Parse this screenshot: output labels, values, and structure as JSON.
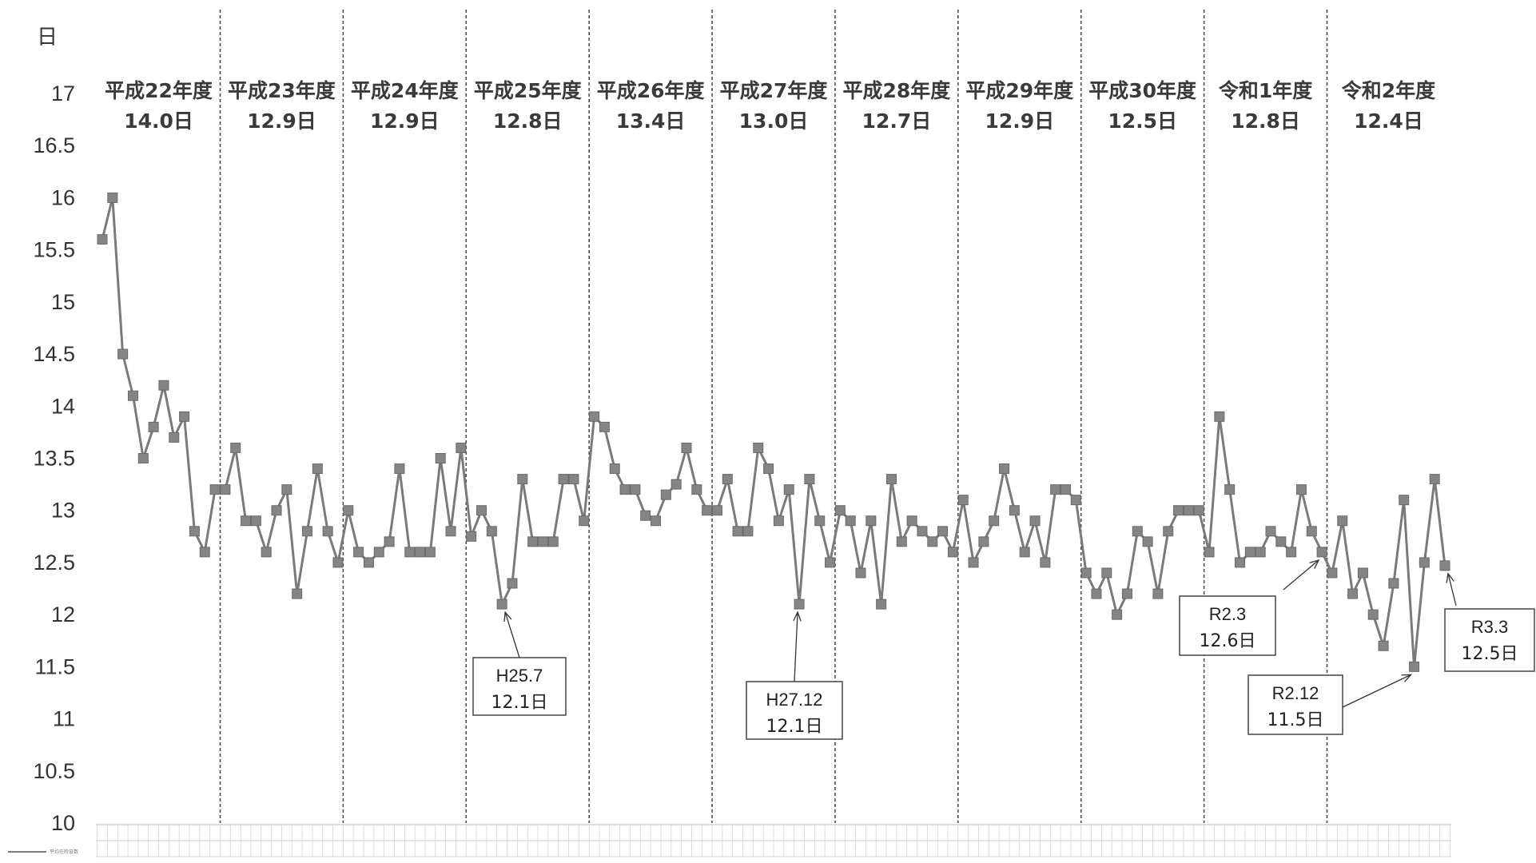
{
  "chart_data": {
    "type": "line",
    "unit_label": "日",
    "ylim": [
      10,
      17
    ],
    "y_ticks": [
      "17",
      "16.5",
      "16",
      "15.5",
      "15",
      "14.5",
      "14",
      "13.5",
      "13",
      "12.5",
      "12",
      "11.5",
      "11",
      "10.5",
      "10"
    ],
    "grid": false,
    "legend": "bottom-left",
    "series": [
      {
        "name": "平均在院日数",
        "color": "#7a7a7a",
        "values": [
          15.6,
          16.0,
          14.5,
          14.1,
          13.5,
          13.8,
          14.2,
          13.7,
          13.9,
          12.8,
          12.6,
          13.2,
          13.2,
          13.6,
          12.9,
          12.9,
          12.6,
          13.0,
          13.2,
          12.2,
          12.8,
          13.4,
          12.8,
          12.5,
          13.0,
          12.6,
          12.5,
          12.6,
          12.7,
          13.4,
          12.6,
          12.6,
          12.6,
          13.5,
          12.8,
          13.6,
          12.75,
          13.0,
          12.8,
          12.1,
          12.3,
          13.3,
          12.7,
          12.7,
          12.7,
          13.3,
          13.3,
          12.9,
          13.9,
          13.8,
          13.4,
          13.2,
          13.2,
          12.95,
          12.9,
          13.15,
          13.25,
          13.6,
          13.2,
          13.0,
          13.0,
          13.3,
          12.8,
          12.8,
          13.6,
          13.4,
          12.9,
          13.2,
          12.1,
          13.3,
          12.9,
          12.5,
          13.0,
          12.9,
          12.4,
          12.9,
          12.1,
          13.3,
          12.7,
          12.9,
          12.8,
          12.7,
          12.8,
          12.6,
          13.1,
          12.5,
          12.7,
          12.9,
          13.4,
          13.0,
          12.6,
          12.9,
          12.5,
          13.2,
          13.2,
          13.1,
          12.4,
          12.2,
          12.4,
          12.0,
          12.2,
          12.8,
          12.7,
          12.2,
          12.8,
          13.0,
          13.0,
          13.0,
          12.6,
          13.9,
          13.2,
          12.5,
          12.6,
          12.6,
          12.8,
          12.7,
          12.6,
          13.2,
          12.8,
          12.6,
          12.4,
          12.9,
          12.2,
          12.4,
          12.0,
          11.7,
          12.3,
          13.1,
          11.5,
          12.5,
          13.3,
          12.47
        ]
      }
    ],
    "fiscal_years": [
      {
        "name": "平成22年度",
        "avg": "14.0日"
      },
      {
        "name": "平成23年度",
        "avg": "12.9日"
      },
      {
        "name": "平成24年度",
        "avg": "12.9日"
      },
      {
        "name": "平成25年度",
        "avg": "12.8日"
      },
      {
        "name": "平成26年度",
        "avg": "13.4日"
      },
      {
        "name": "平成27年度",
        "avg": "13.0日"
      },
      {
        "name": "平成28年度",
        "avg": "12.7日"
      },
      {
        "name": "平成29年度",
        "avg": "12.9日"
      },
      {
        "name": "平成30年度",
        "avg": "12.5日"
      },
      {
        "name": "令和1年度",
        "avg": "12.8日"
      },
      {
        "name": "令和2年度",
        "avg": "12.4日"
      }
    ],
    "annotations": [
      {
        "index": 39,
        "line1": "H25.7",
        "line2": "12.1日"
      },
      {
        "index": 68,
        "line1": "H27.12",
        "line2": "12.1日"
      },
      {
        "index": 119,
        "line1": "R2.3",
        "line2": "12.6日"
      },
      {
        "index": 128,
        "line1": "R2.12",
        "line2": "11.5日"
      },
      {
        "index": 131,
        "line1": "R3.3",
        "line2": "12.5日"
      }
    ]
  }
}
